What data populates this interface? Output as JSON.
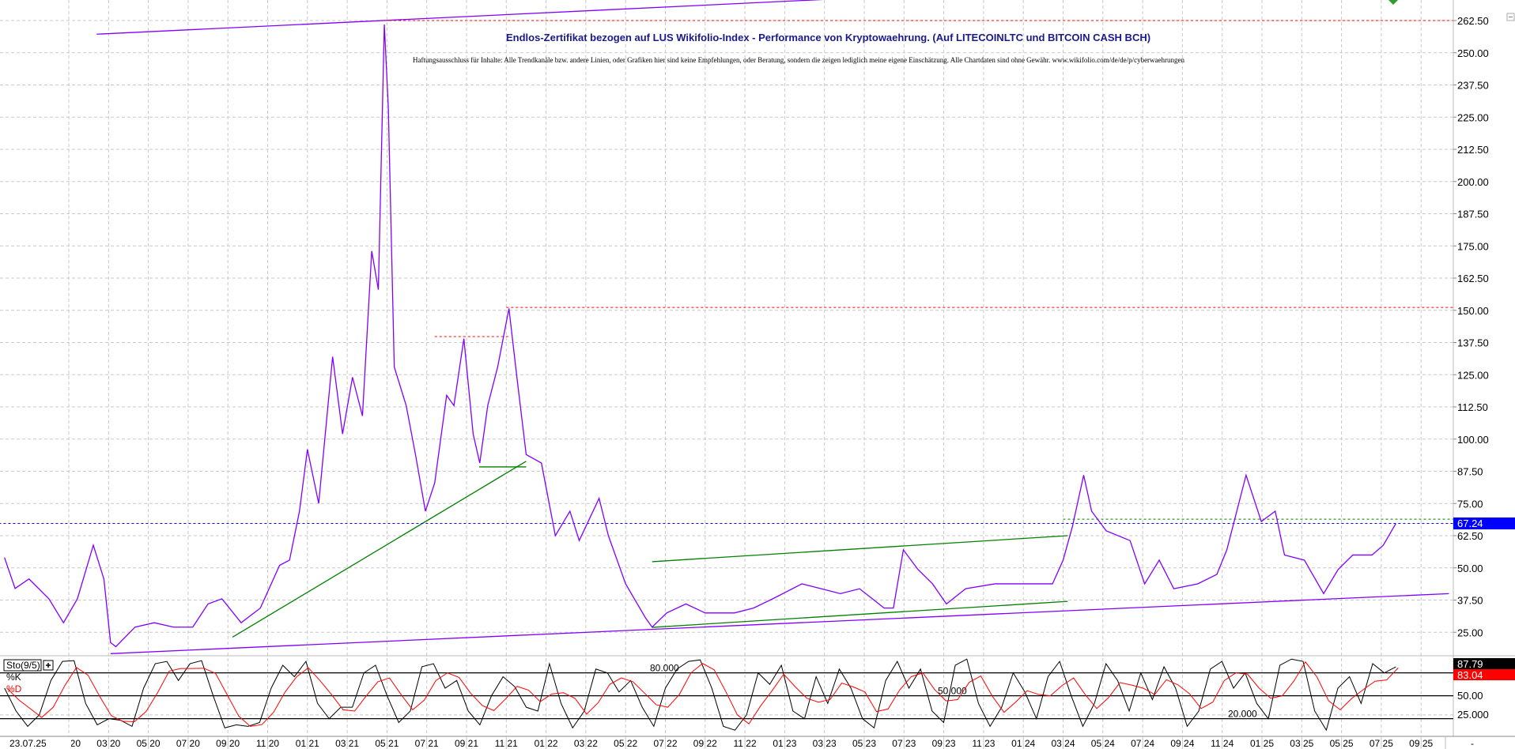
{
  "chart_data": {
    "type": "line",
    "title": "Endlos-Zertifikat bezogen auf LUS Wikifolio-Index - Performance von Kryptowaehrung. (Auf LITECOINLTC und BITCOIN CASH BCH)",
    "disclaimer": "Haftungsausschluss für Inhalte: Alle Trendkanäle bzw. andere Linien, oder Grafiken hier sind keine Empfehlungen, oder Beratung, sondern die zeigen lediglich meine eigene Einschätzung. Alle Chartdaten sind ohne Gewähr.  www.wikifolio.com/de/de/p/cyberwaehrungen",
    "date_label": "23.07.25",
    "last_value_label": "67.24",
    "ylim": [
      20,
      268
    ],
    "y_ticks": [
      "25.00",
      "37.50",
      "50.00",
      "62.50",
      "75.00",
      "87.50",
      "100.00",
      "112.50",
      "125.00",
      "137.50",
      "150.00",
      "162.50",
      "175.00",
      "187.50",
      "200.00",
      "212.50",
      "225.00",
      "237.50",
      "250.00",
      "262.50"
    ],
    "x_ticks": [
      {
        "month": "2020-01",
        "label": "01 20"
      },
      {
        "month": "2020-03",
        "label": "03 20"
      },
      {
        "month": "2020-05",
        "label": "05 20"
      },
      {
        "month": "2020-07",
        "label": "07 20"
      },
      {
        "month": "2020-09",
        "label": "09 20"
      },
      {
        "month": "2020-11",
        "label": "11 20"
      },
      {
        "month": "2021-01",
        "label": "01 21"
      },
      {
        "month": "2021-03",
        "label": "03 21"
      },
      {
        "month": "2021-05",
        "label": "05 21"
      },
      {
        "month": "2021-07",
        "label": "07 21"
      },
      {
        "month": "2021-09",
        "label": "09 21"
      },
      {
        "month": "2021-11",
        "label": "11 21"
      },
      {
        "month": "2022-01",
        "label": "01 22"
      },
      {
        "month": "2022-03",
        "label": "03 22"
      },
      {
        "month": "2022-05",
        "label": "05 22"
      },
      {
        "month": "2022-07",
        "label": "07 22"
      },
      {
        "month": "2022-09",
        "label": "09 22"
      },
      {
        "month": "2022-11",
        "label": "11 22"
      },
      {
        "month": "2023-01",
        "label": "01 23"
      },
      {
        "month": "2023-03",
        "label": "03 23"
      },
      {
        "month": "2023-05",
        "label": "05 23"
      },
      {
        "month": "2023-07",
        "label": "07 23"
      },
      {
        "month": "2023-09",
        "label": "09 23"
      },
      {
        "month": "2023-11",
        "label": "11 23"
      },
      {
        "month": "2024-01",
        "label": "01 24"
      },
      {
        "month": "2024-03",
        "label": "03 24"
      },
      {
        "month": "2024-05",
        "label": "05 24"
      },
      {
        "month": "2024-07",
        "label": "07 24"
      },
      {
        "month": "2024-09",
        "label": "09 24"
      },
      {
        "month": "2024-11",
        "label": "11 24"
      },
      {
        "month": "2025-01",
        "label": "01 25"
      },
      {
        "month": "2025-03",
        "label": "03 25"
      },
      {
        "month": "2025-05",
        "label": "05 25"
      },
      {
        "month": "2025-07",
        "label": "07 25"
      },
      {
        "month": "2025-09",
        "label": "09 25"
      }
    ],
    "x_end_label": "-",
    "grid": true,
    "colors": {
      "price": "#8000ff",
      "support": "#8000ff",
      "trend": "#008000",
      "resistance": "#ff0000",
      "last": "#0000ff",
      "k": "#000000",
      "d": "#ff0000"
    },
    "series": [
      {
        "points": [
          [
            "2019-09-24",
            54
          ],
          [
            "2019-10-10",
            42
          ],
          [
            "2019-11-01",
            45.7
          ],
          [
            "2019-12-01",
            38
          ],
          [
            "2019-12-23",
            28.7
          ],
          [
            "2020-01-14",
            38
          ],
          [
            "2020-02-08",
            58.8
          ],
          [
            "2020-02-24",
            45.6
          ],
          [
            "2020-03-04",
            21
          ],
          [
            "2020-03-12",
            19.4
          ],
          [
            "2020-04-11",
            27
          ],
          [
            "2020-05-10",
            28.7
          ],
          [
            "2020-06-09",
            27
          ],
          [
            "2020-07-08",
            27
          ],
          [
            "2020-08-01",
            36
          ],
          [
            "2020-08-22",
            38
          ],
          [
            "2020-09-21",
            28.7
          ],
          [
            "2020-10-20",
            34.4
          ],
          [
            "2020-11-19",
            51
          ],
          [
            "2020-12-04",
            53
          ],
          [
            "2020-12-19",
            72
          ],
          [
            "2021-01-01",
            96
          ],
          [
            "2021-01-18",
            75
          ],
          [
            "2021-02-09",
            132
          ],
          [
            "2021-02-24",
            102
          ],
          [
            "2021-03-09",
            124
          ],
          [
            "2021-03-24",
            109
          ],
          [
            "2021-04-08",
            173
          ],
          [
            "2021-04-18",
            158
          ],
          [
            "2021-04-27",
            261
          ],
          [
            "2021-05-03",
            229
          ],
          [
            "2021-05-12",
            128
          ],
          [
            "2021-05-30",
            113
          ],
          [
            "2021-06-14",
            94
          ],
          [
            "2021-06-29",
            72
          ],
          [
            "2021-07-13",
            83
          ],
          [
            "2021-08-01",
            117
          ],
          [
            "2021-08-12",
            113
          ],
          [
            "2021-08-27",
            139
          ],
          [
            "2021-09-11",
            102
          ],
          [
            "2021-09-21",
            90.7
          ],
          [
            "2021-10-03",
            113
          ],
          [
            "2021-10-18",
            128
          ],
          [
            "2021-11-05",
            150.7
          ],
          [
            "2021-11-17",
            124
          ],
          [
            "2021-12-01",
            94
          ],
          [
            "2021-12-24",
            90.7
          ],
          [
            "2022-01-15",
            62.5
          ],
          [
            "2022-02-07",
            72
          ],
          [
            "2022-02-21",
            60.6
          ],
          [
            "2022-03-21",
            77
          ],
          [
            "2022-04-05",
            62.5
          ],
          [
            "2022-05-01",
            43.8
          ],
          [
            "2022-06-01",
            30.6
          ],
          [
            "2022-06-11",
            27
          ],
          [
            "2022-07-03",
            32.5
          ],
          [
            "2022-08-02",
            36
          ],
          [
            "2022-09-01",
            32.5
          ],
          [
            "2022-10-15",
            32.5
          ],
          [
            "2022-11-14",
            34.4
          ],
          [
            "2022-12-13",
            38
          ],
          [
            "2023-01-27",
            43.8
          ],
          [
            "2023-02-26",
            41.9
          ],
          [
            "2023-03-25",
            40
          ],
          [
            "2023-04-24",
            41.9
          ],
          [
            "2023-06-01",
            34.4
          ],
          [
            "2023-06-15",
            34.4
          ],
          [
            "2023-06-30",
            57
          ],
          [
            "2023-07-22",
            49.4
          ],
          [
            "2023-08-14",
            43.8
          ],
          [
            "2023-09-05",
            36
          ],
          [
            "2023-10-04",
            41.9
          ],
          [
            "2023-11-18",
            43.8
          ],
          [
            "2024-01-02",
            43.8
          ],
          [
            "2024-02-15",
            43.8
          ],
          [
            "2024-03-01",
            53
          ],
          [
            "2024-03-15",
            66
          ],
          [
            "2024-04-02",
            86
          ],
          [
            "2024-04-14",
            72
          ],
          [
            "2024-05-06",
            64.4
          ],
          [
            "2024-06-12",
            60.6
          ],
          [
            "2024-07-04",
            43.8
          ],
          [
            "2024-07-26",
            53
          ],
          [
            "2024-08-18",
            41.9
          ],
          [
            "2024-09-24",
            43.8
          ],
          [
            "2024-10-23",
            47.5
          ],
          [
            "2024-11-08",
            57
          ],
          [
            "2024-11-23",
            72
          ],
          [
            "2024-12-07",
            86
          ],
          [
            "2024-12-30",
            68
          ],
          [
            "2025-01-21",
            72
          ],
          [
            "2025-02-05",
            55
          ],
          [
            "2025-03-05",
            53
          ],
          [
            "2025-04-04",
            40
          ],
          [
            "2025-04-26",
            49.4
          ],
          [
            "2025-05-18",
            55
          ],
          [
            "2025-06-17",
            55
          ],
          [
            "2025-07-04",
            58.8
          ],
          [
            "2025-07-23",
            67.24
          ]
        ]
      }
    ],
    "lines": [
      {
        "kind": "support",
        "from": [
          "2020-02-13",
          257.2
        ],
        "to": [
          "2023-03-10",
          270.8
        ]
      },
      {
        "kind": "support",
        "from": [
          "2020-03-04",
          16.7
        ],
        "to": [
          "2025-10-13",
          40
        ]
      },
      {
        "kind": "trend",
        "from": [
          "2020-09-08",
          23.1
        ],
        "to": [
          "2021-12-01",
          91.4
        ]
      },
      {
        "kind": "trend",
        "from": [
          "2021-09-20",
          89.2
        ],
        "to": [
          "2021-12-01",
          89.2
        ]
      },
      {
        "kind": "trend",
        "from": [
          "2022-06-11",
          52.4
        ],
        "to": [
          "2024-03-08",
          62.5
        ]
      },
      {
        "kind": "trend",
        "from": [
          "2022-06-11",
          26.9
        ],
        "to": [
          "2024-03-08",
          37
        ]
      }
    ],
    "hlines": [
      {
        "kind": "resistance",
        "value": 262.5,
        "from": "2021-04-27"
      },
      {
        "kind": "resistance",
        "value": 151.1,
        "from": "2021-11-01"
      },
      {
        "kind": "resistance",
        "value": 139.8,
        "from": "2021-07-13",
        "to": "2021-11-05"
      },
      {
        "kind": "trend",
        "value": 68.9,
        "from": "2024-03-01"
      },
      {
        "kind": "last",
        "value": 67.24,
        "from": "2019-09-01"
      }
    ],
    "stochastic": {
      "label": "Sto(9/5)",
      "k_label": "%K",
      "d_label": "%D",
      "levels": [
        {
          "value": 80,
          "label": "80.000"
        },
        {
          "value": 50,
          "label": "50.000"
        },
        {
          "value": 20,
          "label": "20.000"
        }
      ],
      "axis_labels": [
        "50.00",
        "25.000"
      ],
      "k_last": "87.79",
      "d_last": "83.04",
      "x_start": "2019-09-24",
      "x_end": "2025-07-23",
      "k": [
        60,
        30,
        10,
        25,
        70,
        95,
        96,
        40,
        12,
        20,
        18,
        10,
        60,
        92,
        95,
        70,
        92,
        96,
        50,
        8,
        12,
        10,
        15,
        60,
        90,
        75,
        95,
        40,
        20,
        35,
        35,
        80,
        90,
        50,
        15,
        30,
        88,
        92,
        60,
        70,
        30,
        12,
        50,
        75,
        62,
        35,
        30,
        92,
        40,
        8,
        30,
        85,
        80,
        55,
        70,
        35,
        10,
        60,
        85,
        95,
        97,
        60,
        10,
        5,
        25,
        80,
        65,
        90,
        30,
        20,
        75,
        40,
        85,
        60,
        20,
        8,
        70,
        95,
        60,
        85,
        30,
        15,
        90,
        98,
        40,
        10,
        35,
        80,
        55,
        20,
        75,
        95,
        50,
        10,
        40,
        92,
        70,
        30,
        80,
        45,
        88,
        60,
        10,
        30,
        85,
        95,
        60,
        80,
        40,
        20,
        90,
        98,
        95,
        30,
        5,
        60,
        75,
        40,
        92,
        80,
        87.79
      ]
    }
  }
}
